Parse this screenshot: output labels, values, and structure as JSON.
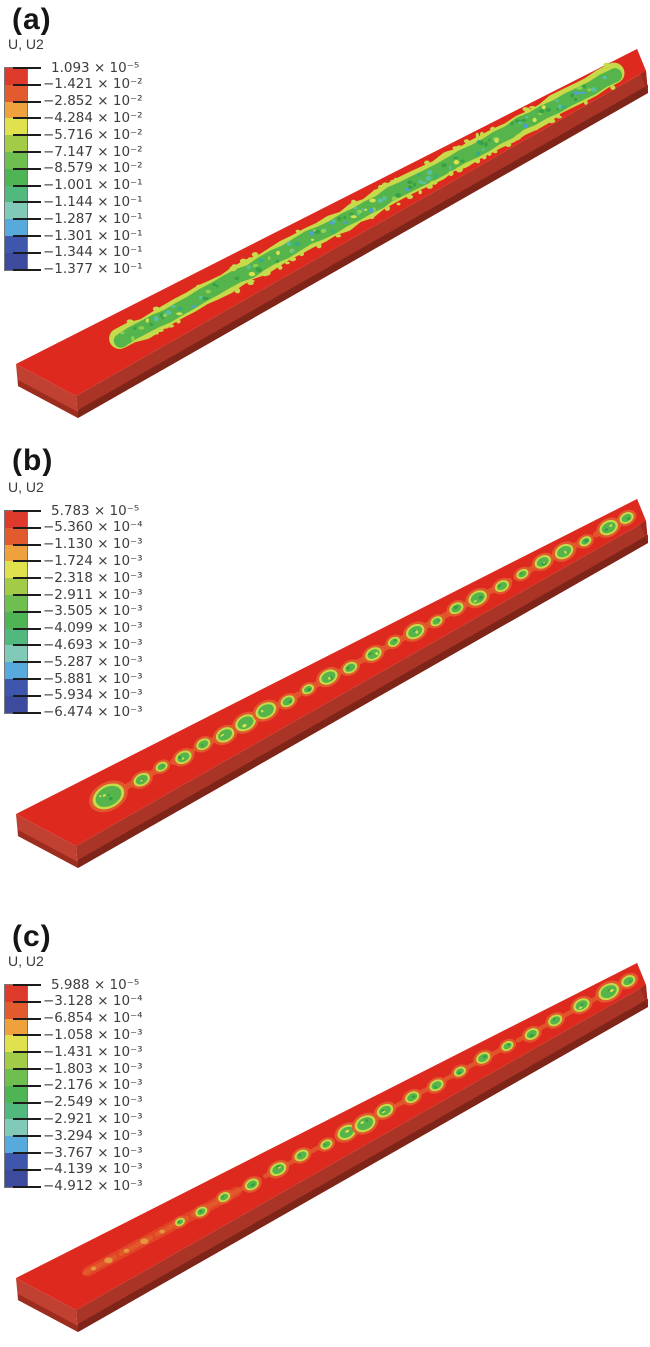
{
  "figure": {
    "colors": {
      "background": "#ffffff",
      "bar_top": "#de2a1e",
      "bar_side": "#aa3426",
      "bar_side_dark": "#7f2418",
      "bar_end_left": "#c04031",
      "bar_end_left_dark": "#9c2c1d",
      "bar_end_right": "#9c2a1d",
      "stripe_border": "#c6da4a",
      "stripe_fill": "#55b44b",
      "blob_halo": "#e25b2d",
      "speck_orange": "#e69b3f",
      "speckle_teal": "#58bfa2",
      "speckle_dark_green": "#36a146",
      "speckle_blue": "#4fa0d8",
      "speckle_yellow": "#d8e24f"
    },
    "legend_colors": [
      "#dd3a2b",
      "#e25b2f",
      "#efa13d",
      "#dfe14e",
      "#a2cc48",
      "#6fbf50",
      "#4eb454",
      "#52b97e",
      "#81cab8",
      "#58aadd",
      "#3e56ab",
      "#3d4b9f"
    ],
    "panels": [
      {
        "label": "(a)",
        "field_label": "U, U2",
        "legend_values": [
          "1.093 × 10⁻⁵",
          "−1.421 × 10⁻²",
          "−2.852 × 10⁻²",
          "−4.284 × 10⁻²",
          "−5.716 × 10⁻²",
          "−7.147 × 10⁻²",
          "−8.579 × 10⁻²",
          "−1.001 × 10⁻¹",
          "−1.144 × 10⁻¹",
          "−1.287 × 10⁻¹",
          "−1.301 × 10⁻¹",
          "−1.344 × 10⁻¹",
          "−1.377 × 10⁻¹"
        ],
        "pattern": {
          "type": "stripe",
          "t0": 0.125,
          "t1": 0.955
        }
      },
      {
        "label": "(b)",
        "field_label": "U, U2",
        "legend_values": [
          "5.783 × 10⁻⁵",
          "−5.360 × 10⁻⁴",
          "−1.130 × 10⁻³",
          "−1.724 × 10⁻³",
          "−2.318 × 10⁻³",
          "−2.911 × 10⁻³",
          "−3.505 × 10⁻³",
          "−4.099 × 10⁻³",
          "−4.693 × 10⁻³",
          "−5.287 × 10⁻³",
          "−5.881 × 10⁻³",
          "−5.934 × 10⁻³",
          "−6.474 × 10⁻³"
        ],
        "pattern": {
          "type": "blobs",
          "streak": [
            0.08,
            0.985
          ],
          "blobs": [
            [
              0.105,
              13,
              0
            ],
            [
              0.16,
              6,
              1
            ],
            [
              0.195,
              4,
              -1
            ],
            [
              0.23,
              6,
              1
            ],
            [
              0.265,
              5,
              -1
            ],
            [
              0.3,
              7,
              1
            ],
            [
              0.335,
              8,
              0
            ],
            [
              0.37,
              8,
              -1
            ],
            [
              0.405,
              5,
              1
            ],
            [
              0.44,
              4,
              0
            ],
            [
              0.475,
              7,
              -1
            ],
            [
              0.51,
              5,
              1
            ],
            [
              0.55,
              6,
              0
            ],
            [
              0.585,
              4,
              -1
            ],
            [
              0.62,
              7,
              0
            ],
            [
              0.655,
              4,
              1
            ],
            [
              0.69,
              5,
              -1
            ],
            [
              0.725,
              7,
              0
            ],
            [
              0.765,
              5,
              1
            ],
            [
              0.8,
              4,
              0
            ],
            [
              0.835,
              6,
              -1
            ],
            [
              0.87,
              7,
              0
            ],
            [
              0.905,
              4,
              1
            ],
            [
              0.945,
              7,
              0
            ],
            [
              0.975,
              5,
              0
            ]
          ],
          "specks": []
        }
      },
      {
        "label": "(c)",
        "field_label": "U, U2",
        "legend_values": [
          "5.988 × 10⁻⁵",
          "−3.128 × 10⁻⁴",
          "−6.854 × 10⁻⁴",
          "−1.058 × 10⁻³",
          "−1.431 × 10⁻³",
          "−1.803 × 10⁻³",
          "−2.176 × 10⁻³",
          "−2.549 × 10⁻³",
          "−2.921 × 10⁻³",
          "−3.294 × 10⁻³",
          "−3.767 × 10⁻³",
          "−4.139 × 10⁻³",
          "−4.912 × 10⁻³"
        ],
        "pattern": {
          "type": "blobs",
          "streak": [
            0.065,
            0.99
          ],
          "blobs": [
            [
              0.225,
              3,
              0
            ],
            [
              0.26,
              4,
              1
            ],
            [
              0.3,
              4,
              -1
            ],
            [
              0.345,
              5,
              1
            ],
            [
              0.39,
              6,
              0
            ],
            [
              0.43,
              5,
              -1
            ],
            [
              0.47,
              4,
              1
            ],
            [
              0.505,
              7,
              0
            ],
            [
              0.535,
              8,
              1
            ],
            [
              0.57,
              6,
              -1
            ],
            [
              0.615,
              5,
              0
            ],
            [
              0.655,
              5,
              1
            ],
            [
              0.695,
              4,
              0
            ],
            [
              0.735,
              5,
              -1
            ],
            [
              0.775,
              4,
              0
            ],
            [
              0.815,
              5,
              1
            ],
            [
              0.855,
              5,
              0
            ],
            [
              0.9,
              6,
              -1
            ],
            [
              0.945,
              8,
              0
            ],
            [
              0.978,
              5,
              0
            ]
          ],
          "specks": [
            [
              0.08,
              2
            ],
            [
              0.105,
              3
            ],
            [
              0.135,
              2
            ],
            [
              0.165,
              3
            ],
            [
              0.195,
              2
            ]
          ]
        }
      }
    ]
  }
}
